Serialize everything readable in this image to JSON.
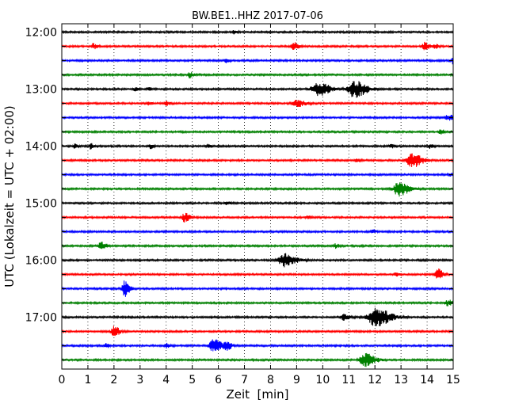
{
  "chart_data": {
    "type": "line",
    "title": "BW.BE1..HHZ 2017-07-06",
    "xlabel": "Zeit  [min]",
    "ylabel": "UTC (Lokalzeit = UTC + 02:00)",
    "xlim": [
      0,
      15
    ],
    "x_ticks": [
      "0",
      "1",
      "2",
      "3",
      "4",
      "5",
      "6",
      "7",
      "8",
      "9",
      "10",
      "11",
      "12",
      "13",
      "14",
      "15"
    ],
    "y_tick_labels": [
      "12:00",
      "13:00",
      "14:00",
      "15:00",
      "16:00",
      "17:00"
    ],
    "grid": "vertical dotted",
    "trace_colors": [
      "#000000",
      "#ff0000",
      "#0000ff",
      "#008000"
    ],
    "traces": [
      {
        "start": "12:00",
        "events": [
          [
            6.6,
            0.3,
            0.1
          ]
        ]
      },
      {
        "start": "12:15",
        "events": [
          [
            1.2,
            0.4,
            0.1
          ],
          [
            8.9,
            0.5,
            0.15
          ],
          [
            13.9,
            0.5,
            0.15
          ],
          [
            14.3,
            0.3,
            0.1
          ]
        ]
      },
      {
        "start": "12:30",
        "events": [
          [
            6.3,
            0.3,
            0.1
          ],
          [
            15.0,
            0.6,
            0.1
          ]
        ]
      },
      {
        "start": "12:45",
        "events": [
          [
            4.9,
            0.4,
            0.1
          ]
        ]
      },
      {
        "start": "13:00",
        "events": [
          [
            9.8,
            0.9,
            0.4
          ],
          [
            11.2,
            1.2,
            0.35
          ],
          [
            3.3,
            0.2,
            0.1
          ],
          [
            2.8,
            0.2,
            0.1
          ]
        ]
      },
      {
        "start": "13:15",
        "events": [
          [
            9.0,
            0.5,
            0.25
          ],
          [
            3.3,
            0.3,
            0.1
          ],
          [
            4.0,
            0.3,
            0.1
          ]
        ]
      },
      {
        "start": "13:30",
        "events": [
          [
            14.8,
            0.4,
            0.15
          ]
        ]
      },
      {
        "start": "13:45",
        "events": [
          [
            14.5,
            0.5,
            0.1
          ]
        ]
      },
      {
        "start": "14:00",
        "events": [
          [
            0.5,
            0.4,
            0.1
          ],
          [
            1.1,
            0.4,
            0.1
          ],
          [
            3.4,
            0.3,
            0.1
          ],
          [
            5.6,
            0.3,
            0.1
          ],
          [
            12.6,
            0.3,
            0.1
          ],
          [
            14.1,
            0.3,
            0.1
          ]
        ]
      },
      {
        "start": "14:15",
        "events": [
          [
            13.4,
            1.0,
            0.3
          ],
          [
            11.3,
            0.2,
            0.1
          ]
        ]
      },
      {
        "start": "14:30",
        "events": [
          [
            14.9,
            0.2,
            0.1
          ]
        ]
      },
      {
        "start": "14:45",
        "events": [
          [
            12.9,
            1.0,
            0.3
          ]
        ]
      },
      {
        "start": "15:00",
        "events": [
          [
            6.3,
            0.3,
            0.1
          ]
        ]
      },
      {
        "start": "15:15",
        "events": [
          [
            4.7,
            0.7,
            0.15
          ],
          [
            9.4,
            0.2,
            0.1
          ]
        ]
      },
      {
        "start": "15:30",
        "events": [
          [
            11.9,
            0.3,
            0.1
          ]
        ]
      },
      {
        "start": "15:45",
        "events": [
          [
            1.5,
            0.6,
            0.15
          ],
          [
            10.5,
            0.3,
            0.1
          ]
        ]
      },
      {
        "start": "16:00",
        "events": [
          [
            8.5,
            0.9,
            0.35
          ]
        ]
      },
      {
        "start": "16:15",
        "events": [
          [
            14.4,
            0.8,
            0.15
          ],
          [
            12.8,
            0.2,
            0.1
          ]
        ]
      },
      {
        "start": "16:30",
        "events": [
          [
            2.4,
            1.1,
            0.15
          ]
        ]
      },
      {
        "start": "16:45",
        "events": [
          [
            14.8,
            0.4,
            0.2
          ]
        ]
      },
      {
        "start": "17:00",
        "events": [
          [
            12.0,
            1.3,
            0.45
          ],
          [
            10.8,
            0.4,
            0.2
          ]
        ]
      },
      {
        "start": "17:15",
        "events": [
          [
            2.0,
            0.8,
            0.15
          ]
        ]
      },
      {
        "start": "17:30",
        "events": [
          [
            5.8,
            0.9,
            0.25
          ],
          [
            6.3,
            0.6,
            0.15
          ],
          [
            1.7,
            0.3,
            0.1
          ],
          [
            4.0,
            0.3,
            0.1
          ]
        ]
      },
      {
        "start": "17:45",
        "events": [
          [
            11.6,
            1.0,
            0.3
          ]
        ]
      }
    ]
  }
}
